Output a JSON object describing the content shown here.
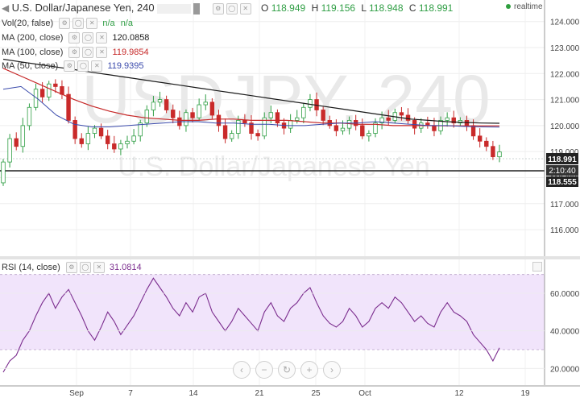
{
  "header": {
    "symbol": "U.S. Dollar/Japanese Yen, 240",
    "open_label": "O",
    "open": "118.949",
    "high_label": "H",
    "high": "119.156",
    "low_label": "L",
    "low": "118.948",
    "close_label": "C",
    "close": "118.991",
    "realtime": "realtime"
  },
  "indicators": {
    "vol": "Vol(20, false)",
    "vol_a": "n/a",
    "vol_b": "n/a",
    "ma200": "MA (200, close)",
    "ma200_value": "120.0858",
    "ma100": "MA (100, close)",
    "ma100_value": "119.9854",
    "ma50": "MA (50, close)",
    "ma50_value": "119.9395",
    "rsi": "RSI (14, close)",
    "rsi_value": "31.0814"
  },
  "watermark": {
    "symbol": "USDJPY, 240",
    "name": "U.S. Dollar/Japanese Yen"
  },
  "price_tags": {
    "last": "118.991",
    "countdown": "2:10:40",
    "level": "118.555"
  },
  "colors": {
    "ma200": "#1a1a1a",
    "ma100": "#c62828",
    "ma50": "#3949ab",
    "candle_up": "#2f9e44",
    "candle_down": "#c92a2a",
    "rsi_line": "#7b2d8e",
    "rsi_band": "#f1e4fb",
    "level_line": "#222222"
  },
  "chart_data": [
    {
      "type": "candlestick",
      "title": "U.S. Dollar/Japanese Yen, 240",
      "x_ticks": [
        "Sep",
        "7",
        "14",
        "21",
        "25",
        "Oct",
        "12",
        "19"
      ],
      "y_ticks": [
        "124.000",
        "123.000",
        "122.000",
        "121.000",
        "120.000",
        "119.000",
        "118.000",
        "117.000",
        "116.000"
      ],
      "ylim": [
        115.6,
        124.3
      ],
      "horizontal_level": 118.555,
      "last_price": 118.991,
      "closes": [
        118.6,
        119.5,
        119.2,
        120.0,
        120.7,
        121.4,
        121.1,
        121.6,
        121.5,
        121.2,
        120.2,
        119.5,
        119.3,
        119.7,
        119.9,
        119.6,
        119.3,
        119.1,
        119.3,
        119.4,
        119.6,
        120.1,
        120.6,
        120.9,
        121.0,
        120.6,
        120.3,
        120.0,
        120.5,
        120.3,
        120.8,
        120.9,
        120.4,
        120.0,
        119.5,
        119.7,
        120.2,
        120.1,
        119.7,
        119.6,
        120.3,
        120.5,
        120.1,
        119.9,
        120.2,
        120.3,
        120.7,
        121.0,
        120.6,
        120.2,
        120.0,
        119.8,
        119.9,
        120.2,
        120.0,
        119.6,
        119.7,
        120.1,
        120.3,
        120.2,
        120.5,
        120.4,
        120.2,
        119.9,
        120.1,
        120.0,
        119.8,
        120.2,
        120.3,
        120.1,
        120.2,
        120.0,
        119.6,
        119.4,
        119.2,
        118.8,
        118.99
      ],
      "series": [
        {
          "name": "MA (200, close)",
          "values": [
            122.55,
            122.45,
            122.35,
            122.25,
            122.15,
            122.05,
            121.95,
            121.85,
            121.75,
            121.65,
            121.55,
            121.45,
            121.35,
            121.25,
            121.15,
            121.05,
            120.95,
            120.85,
            120.75,
            120.65,
            120.55,
            120.45,
            120.35,
            120.25,
            120.2,
            120.15,
            120.12,
            120.1,
            120.09
          ]
        },
        {
          "name": "MA (100, close)",
          "values": [
            122.2,
            121.9,
            121.6,
            121.3,
            121.0,
            120.75,
            120.55,
            120.4,
            120.3,
            120.25,
            120.2,
            120.2,
            120.25,
            120.25,
            120.2,
            120.2,
            120.2,
            120.15,
            120.1,
            120.1,
            120.05,
            120.05,
            120.0,
            120.0,
            120.0,
            119.99,
            119.99,
            119.99,
            119.99
          ]
        },
        {
          "name": "MA (50, close)",
          "values": [
            121.4,
            121.5,
            121.0,
            120.4,
            120.05,
            119.95,
            119.95,
            120.0,
            120.05,
            120.1,
            120.15,
            120.15,
            120.1,
            120.1,
            120.05,
            120.05,
            120.0,
            120.0,
            120.05,
            120.1,
            120.1,
            120.15,
            120.1,
            120.05,
            120.0,
            120.0,
            119.97,
            119.95,
            119.94
          ]
        }
      ]
    },
    {
      "type": "line",
      "title": "RSI (14, close)",
      "y_ticks": [
        "60.0000",
        "40.0000",
        "20.0000"
      ],
      "ylim": [
        12,
        78
      ],
      "band": [
        30,
        70
      ],
      "series": [
        {
          "name": "RSI (14, close)",
          "values": [
            18,
            24,
            27,
            35,
            40,
            48,
            55,
            60,
            52,
            58,
            62,
            55,
            48,
            40,
            35,
            42,
            50,
            45,
            38,
            43,
            48,
            55,
            62,
            68,
            63,
            58,
            52,
            48,
            55,
            50,
            58,
            60,
            50,
            45,
            40,
            45,
            52,
            48,
            44,
            40,
            50,
            55,
            48,
            45,
            52,
            55,
            60,
            63,
            55,
            48,
            44,
            42,
            45,
            52,
            48,
            42,
            45,
            52,
            55,
            52,
            58,
            55,
            50,
            45,
            48,
            44,
            42,
            50,
            55,
            50,
            48,
            45,
            38,
            34,
            30,
            24,
            31
          ]
        }
      ]
    }
  ]
}
